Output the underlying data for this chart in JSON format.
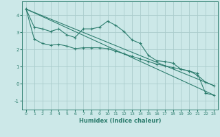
{
  "xlabel": "Humidex (Indice chaleur)",
  "background_color": "#cce8e8",
  "grid_color": "#aacccc",
  "line_color": "#2d7d6e",
  "xlim": [
    -0.5,
    23.5
  ],
  "ylim": [
    -1.5,
    4.8
  ],
  "yticks": [
    -1,
    0,
    1,
    2,
    3,
    4
  ],
  "xticks": [
    0,
    1,
    2,
    3,
    4,
    5,
    6,
    7,
    8,
    9,
    10,
    11,
    12,
    13,
    14,
    15,
    16,
    17,
    18,
    19,
    20,
    21,
    22,
    23
  ],
  "series1_x": [
    0,
    1,
    2,
    3,
    4,
    5,
    6,
    7,
    8,
    9,
    10,
    11,
    12,
    13,
    14,
    15,
    16,
    17,
    18,
    19,
    20,
    21,
    22,
    23
  ],
  "series1_y": [
    4.35,
    3.3,
    3.2,
    3.05,
    3.2,
    2.85,
    2.7,
    3.2,
    3.2,
    3.3,
    3.65,
    3.4,
    3.05,
    2.55,
    2.35,
    1.65,
    1.35,
    1.3,
    1.2,
    0.85,
    0.75,
    0.6,
    -0.55,
    -0.65
  ],
  "series2_x": [
    0,
    1,
    2,
    3,
    4,
    5,
    6,
    7,
    8,
    9,
    10,
    11,
    12,
    13,
    14,
    15,
    16,
    17,
    18,
    19,
    20,
    21,
    22,
    23
  ],
  "series2_y": [
    4.35,
    2.6,
    2.35,
    2.25,
    2.3,
    2.2,
    2.05,
    2.1,
    2.1,
    2.1,
    2.05,
    1.9,
    1.75,
    1.6,
    1.45,
    1.3,
    1.15,
    1.05,
    0.95,
    0.85,
    0.75,
    0.5,
    0.1,
    -0.1
  ],
  "series3_x": [
    0,
    23
  ],
  "series3_y": [
    4.35,
    -0.65
  ],
  "series4_x": [
    0,
    23
  ],
  "series4_y": [
    4.35,
    -0.1
  ]
}
